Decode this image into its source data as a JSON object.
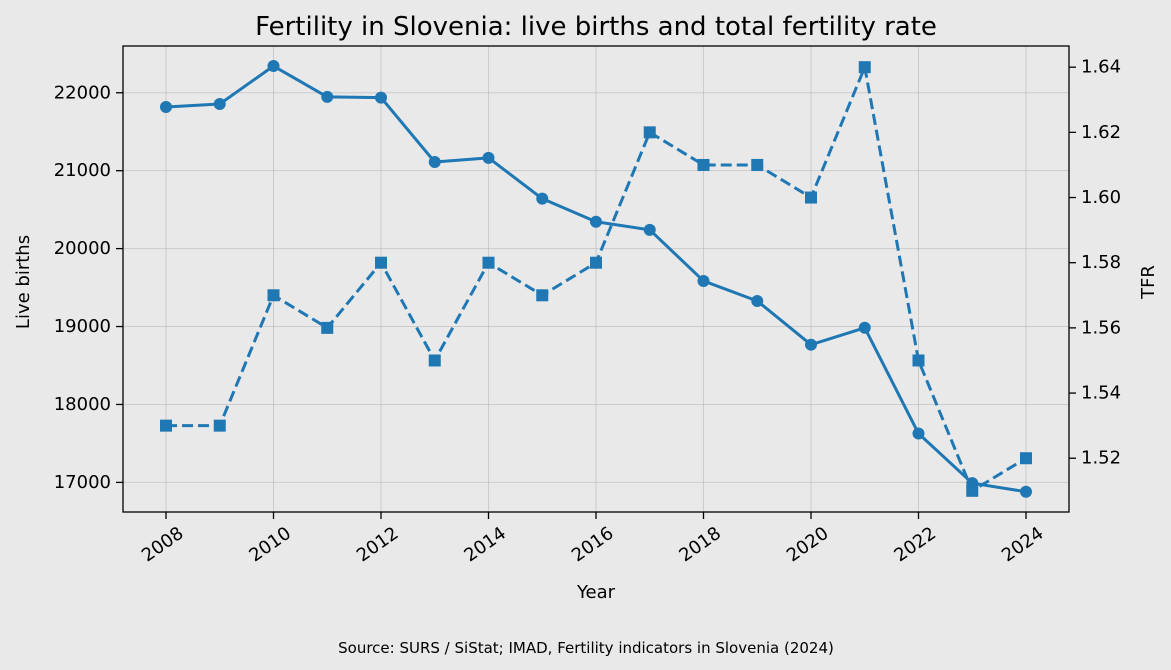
{
  "chart_data": {
    "type": "line",
    "title": "Fertility in Slovenia: live births and total fertility rate",
    "xlabel": "Year",
    "ylabel_left": "Live births",
    "ylabel_right": "TFR",
    "source": "Source: SURS / SiStat; IMAD, Fertility indicators in Slovenia (2024)",
    "x": [
      2008,
      2009,
      2010,
      2011,
      2012,
      2013,
      2014,
      2015,
      2016,
      2017,
      2018,
      2019,
      2020,
      2021,
      2022,
      2023,
      2024
    ],
    "xlim": [
      2007.2,
      2024.8
    ],
    "xticks": [
      2008,
      2010,
      2012,
      2014,
      2016,
      2018,
      2020,
      2022,
      2024
    ],
    "ylim_left": [
      16620,
      22600
    ],
    "yticks_left": [
      17000,
      18000,
      19000,
      20000,
      21000,
      22000
    ],
    "ylim_right": [
      1.5035,
      1.6465
    ],
    "yticks_right": [
      1.52,
      1.54,
      1.56,
      1.58,
      1.6,
      1.62,
      1.64
    ],
    "grid": true,
    "color": "#1f77b4",
    "series": [
      {
        "axis": "left",
        "style": "solid",
        "marker": "circle",
        "values": [
          21817,
          21856,
          22343,
          21947,
          21938,
          21111,
          21165,
          20641,
          20345,
          20241,
          19585,
          19328,
          18767,
          18984,
          17627,
          16990,
          16880
        ]
      },
      {
        "axis": "right",
        "style": "dashed",
        "marker": "square",
        "values": [
          1.53,
          1.53,
          1.57,
          1.56,
          1.58,
          1.55,
          1.58,
          1.57,
          1.58,
          1.62,
          1.61,
          1.61,
          1.6,
          1.64,
          1.55,
          1.51,
          1.52
        ]
      }
    ]
  }
}
